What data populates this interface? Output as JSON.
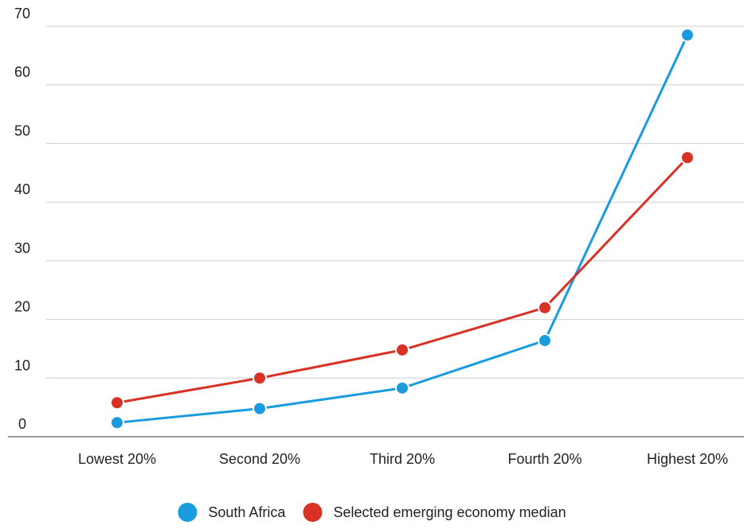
{
  "chart_data": {
    "type": "line",
    "categories": [
      "Lowest 20%",
      "Second 20%",
      "Third 20%",
      "Fourth 20%",
      "Highest 20%"
    ],
    "series": [
      {
        "name": "South Africa",
        "color": "#1a9be0",
        "values": [
          2.4,
          4.8,
          8.3,
          16.4,
          68.5
        ]
      },
      {
        "name": "Selected emerging economy median",
        "color": "#d83126",
        "values": [
          5.8,
          10.0,
          14.8,
          22.0,
          47.6
        ]
      }
    ],
    "ylim": [
      0,
      70
    ],
    "yticks": [
      0,
      10,
      20,
      30,
      40,
      50,
      60,
      70
    ],
    "grid": true,
    "legend_position": "bottom"
  }
}
